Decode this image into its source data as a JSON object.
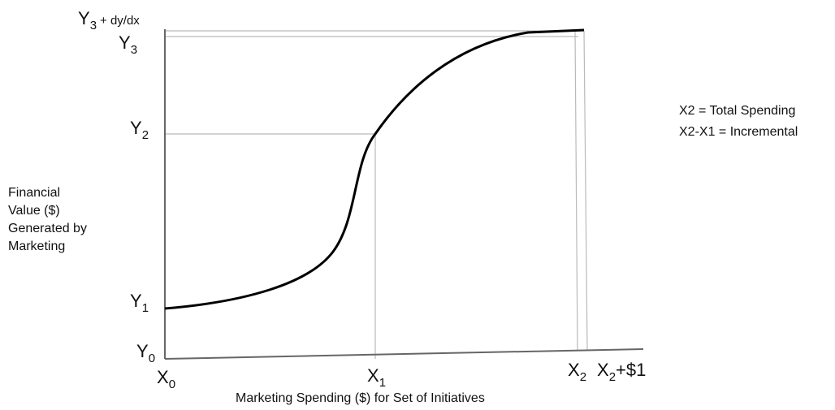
{
  "chart_data": {
    "type": "line",
    "y_axis_title_lines": [
      "Financial",
      "Value ($)",
      "Generated by",
      "Marketing"
    ],
    "x_axis_title": "Marketing Spending ($) for Set of Initiatives",
    "notes": [
      "X2 = Total Spending",
      "X2-X1 = Incremental"
    ],
    "y_ticks": [
      {
        "base": "Y",
        "sub": "0",
        "suffix": ""
      },
      {
        "base": "Y",
        "sub": "1",
        "suffix": ""
      },
      {
        "base": "Y",
        "sub": "2",
        "suffix": ""
      },
      {
        "base": "Y",
        "sub": "3",
        "suffix": ""
      },
      {
        "base": "Y",
        "sub": "3",
        "suffix": "+ dy/dx"
      }
    ],
    "x_ticks": [
      {
        "base": "X",
        "sub": "0",
        "suffix": ""
      },
      {
        "base": "X",
        "sub": "1",
        "suffix": ""
      },
      {
        "base": "X",
        "sub": "2",
        "suffix": ""
      },
      {
        "base": "X",
        "sub": "2",
        "suffix": "+$1"
      }
    ],
    "curve": "S-shaped response curve rising from Y1 at X0, through Y2 at X1, leveling off at Y3 near X2"
  }
}
